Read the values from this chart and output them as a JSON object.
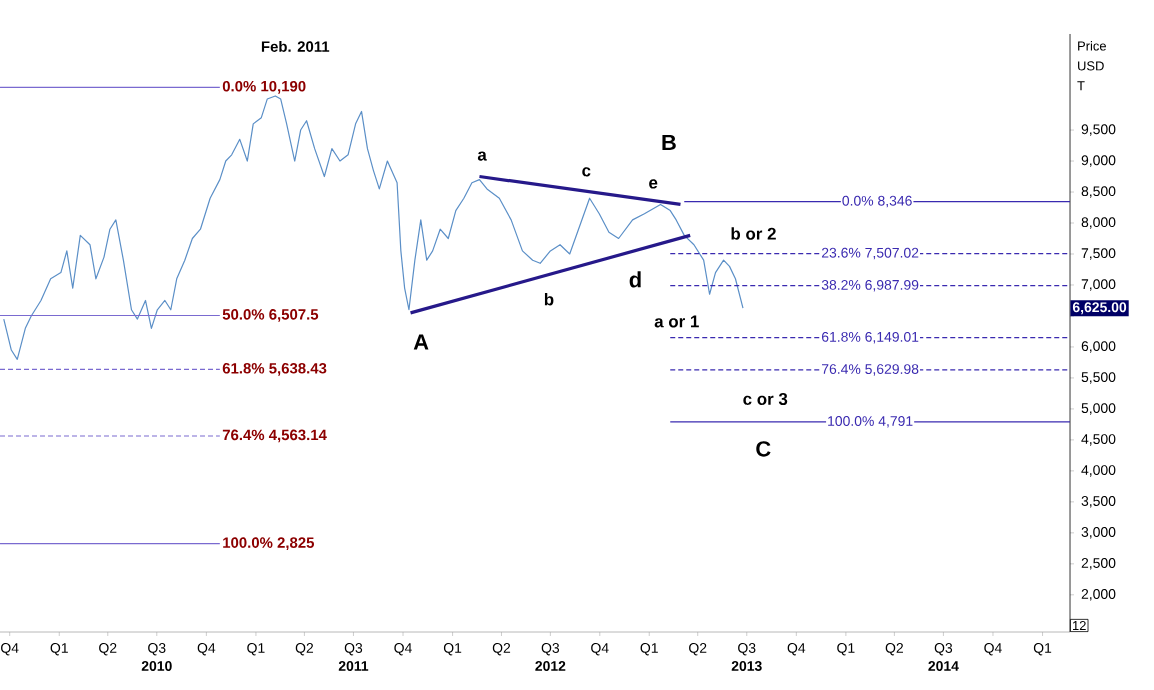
{
  "chart_data": {
    "type": "line",
    "ylabel": "Price USD T",
    "xlim": [
      "2009-09-13",
      "2015-02-21"
    ],
    "ylim": [
      1400,
      11050
    ],
    "grid": false,
    "marker": "none",
    "xticks": [
      {
        "value": "2009-10-01",
        "label": "Q4"
      },
      {
        "value": "2010-01-01",
        "label": "Q1"
      },
      {
        "value": "2010-04-01",
        "label": "Q2"
      },
      {
        "value": "2010-07-01",
        "label": "Q3"
      },
      {
        "value": "2010-10-01",
        "label": "Q4"
      },
      {
        "value": "2011-01-01",
        "label": "Q1"
      },
      {
        "value": "2011-04-01",
        "label": "Q2"
      },
      {
        "value": "2011-07-01",
        "label": "Q3"
      },
      {
        "value": "2011-10-01",
        "label": "Q4"
      },
      {
        "value": "2012-01-01",
        "label": "Q1"
      },
      {
        "value": "2012-04-01",
        "label": "Q2"
      },
      {
        "value": "2012-07-01",
        "label": "Q3"
      },
      {
        "value": "2012-10-01",
        "label": "Q4"
      },
      {
        "value": "2013-01-01",
        "label": "Q1"
      },
      {
        "value": "2013-04-01",
        "label": "Q2"
      },
      {
        "value": "2013-07-01",
        "label": "Q3"
      },
      {
        "value": "2013-10-01",
        "label": "Q4"
      },
      {
        "value": "2014-01-01",
        "label": "Q1"
      },
      {
        "value": "2014-04-01",
        "label": "Q2"
      },
      {
        "value": "2014-07-01",
        "label": "Q3"
      },
      {
        "value": "2014-10-01",
        "label": "Q4"
      },
      {
        "value": "2015-01-01",
        "label": "Q1"
      }
    ],
    "yticks": [
      {
        "value": 2000,
        "label": "2,000"
      },
      {
        "value": 2500,
        "label": "2,500"
      },
      {
        "value": 3000,
        "label": "3,000"
      },
      {
        "value": 3500,
        "label": "3,500"
      },
      {
        "value": 4000,
        "label": "4,000"
      },
      {
        "value": 4500,
        "label": "4,500"
      },
      {
        "value": 5000,
        "label": "5,000"
      },
      {
        "value": 5500,
        "label": "5,500"
      },
      {
        "value": 6000,
        "label": "6,000"
      },
      {
        "value": 6500,
        "label": null
      },
      {
        "value": 7000,
        "label": "7,000"
      },
      {
        "value": 7500,
        "label": "7,500"
      },
      {
        "value": 8000,
        "label": "8,000"
      },
      {
        "value": 8500,
        "label": "8,500"
      },
      {
        "value": 9000,
        "label": "9,000"
      },
      {
        "value": 9500,
        "label": "9,500"
      }
    ],
    "series": [
      {
        "color": "#5b8fc7",
        "line_style": "solid",
        "x": [
          "2009-09-20",
          "2009-10-04",
          "2009-10-15",
          "2009-10-30",
          "2009-11-10",
          "2009-11-28",
          "2009-12-16",
          "2010-01-04",
          "2010-01-15",
          "2010-01-26",
          "2010-02-09",
          "2010-02-27",
          "2010-03-10",
          "2010-03-25",
          "2010-04-05",
          "2010-04-16",
          "2010-04-30",
          "2010-05-15",
          "2010-05-26",
          "2010-06-10",
          "2010-06-21",
          "2010-07-02",
          "2010-07-16",
          "2010-07-27",
          "2010-08-07",
          "2010-08-22",
          "2010-09-05",
          "2010-09-20",
          "2010-10-08",
          "2010-10-26",
          "2010-11-06",
          "2010-11-17",
          "2010-12-02",
          "2010-12-16",
          "2010-12-27",
          "2011-01-11",
          "2011-01-22",
          "2011-02-06",
          "2011-02-16",
          "2011-02-27",
          "2011-03-14",
          "2011-03-25",
          "2011-04-05",
          "2011-04-20",
          "2011-05-08",
          "2011-05-22",
          "2011-06-06",
          "2011-06-21",
          "2011-07-05",
          "2011-07-16",
          "2011-07-27",
          "2011-08-07",
          "2011-08-18",
          "2011-09-02",
          "2011-09-20",
          "2011-09-27",
          "2011-10-04",
          "2011-10-12",
          "2011-10-23",
          "2011-11-03",
          "2011-11-14",
          "2011-11-25",
          "2011-12-09",
          "2011-12-24",
          "2012-01-07",
          "2012-01-22",
          "2012-02-06",
          "2012-02-20",
          "2012-03-05",
          "2012-03-28",
          "2012-04-19",
          "2012-05-10",
          "2012-05-29",
          "2012-06-12",
          "2012-07-01",
          "2012-07-19",
          "2012-08-06",
          "2012-09-12",
          "2012-09-30",
          "2012-10-18",
          "2012-11-05",
          "2012-12-01",
          "2012-12-23",
          "2013-01-22",
          "2013-02-09",
          "2013-02-20",
          "2013-03-07",
          "2013-03-25",
          "2013-04-12",
          "2013-04-23",
          "2013-05-04",
          "2013-05-19",
          "2013-05-30",
          "2013-06-10",
          "2013-06-24"
        ],
        "values": [
          6450,
          5950,
          5800,
          6300,
          6500,
          6750,
          7100,
          7200,
          7550,
          6950,
          7800,
          7650,
          7100,
          7450,
          7900,
          8050,
          7400,
          6600,
          6450,
          6750,
          6300,
          6600,
          6750,
          6600,
          7100,
          7400,
          7750,
          7900,
          8400,
          8700,
          9000,
          9100,
          9350,
          9000,
          9600,
          9700,
          10000,
          10050,
          10000,
          9600,
          9000,
          9500,
          9650,
          9200,
          8750,
          9200,
          9000,
          9100,
          9600,
          9800,
          9200,
          8850,
          8550,
          9000,
          8650,
          7550,
          6950,
          6600,
          7400,
          8050,
          7400,
          7550,
          7900,
          7750,
          8200,
          8400,
          8650,
          8700,
          8550,
          8400,
          8050,
          7550,
          7400,
          7350,
          7550,
          7650,
          7500,
          8400,
          8150,
          7850,
          7750,
          8050,
          8150,
          8300,
          8200,
          8050,
          7800,
          7650,
          7400,
          6850,
          7200,
          7400,
          7300,
          7100,
          6625
        ]
      },
      {
        "color": "#26198a",
        "line_style": "solid",
        "x": [
          "2011-10-15",
          "2013-03-18"
        ],
        "values": [
          6550,
          7800
        ]
      },
      {
        "color": "#26198a",
        "line_style": "solid",
        "x": [
          "2012-02-20",
          "2013-02-28"
        ],
        "values": [
          8750,
          8300
        ]
      },
      {
        "name": "0.0% 10,190",
        "color": "#7a6ad0",
        "line_style": "solid",
        "x": [
          "2009-09-13",
          "2010-10-26"
        ],
        "values": [
          10190,
          10190
        ]
      },
      {
        "name": "50.0% 6,507.5",
        "color": "#7a6ad0",
        "line_style": "solid",
        "x": [
          "2009-09-13",
          "2010-10-26"
        ],
        "values": [
          6507.5,
          6507.5
        ]
      },
      {
        "name": "61.8% 5,638.43",
        "color": "#7a6ad0",
        "line_style": "dashed",
        "x": [
          "2009-09-13",
          "2010-10-26"
        ],
        "values": [
          5638.43,
          5638.43
        ]
      },
      {
        "name": "76.4% 4,563.14",
        "color": "#7a6ad0",
        "line_style": "dashed",
        "x": [
          "2009-09-13",
          "2010-10-26"
        ],
        "values": [
          4563.14,
          4563.14
        ]
      },
      {
        "name": "100.0% 2,825",
        "color": "#7a6ad0",
        "line_style": "solid",
        "x": [
          "2009-09-13",
          "2010-10-26"
        ],
        "values": [
          2825,
          2825
        ]
      },
      {
        "name": "0.0% 8,346",
        "color": "#3a2ab0",
        "line_style": "solid",
        "x": [
          "2013-03-07",
          "2015-02-21"
        ],
        "values": [
          8346,
          8346
        ]
      },
      {
        "name": "23.6% 7,507.02",
        "color": "#3a2ab0",
        "line_style": "dashed",
        "x": [
          "2013-02-09",
          "2015-02-21"
        ],
        "values": [
          7507.02,
          7507.02
        ]
      },
      {
        "name": "38.2% 6,987.99",
        "color": "#3a2ab0",
        "line_style": "dashed",
        "x": [
          "2013-02-09",
          "2015-02-21"
        ],
        "values": [
          6987.99,
          6987.99
        ]
      },
      {
        "name": "61.8% 6,149.01",
        "color": "#3a2ab0",
        "line_style": "dashed",
        "x": [
          "2013-02-09",
          "2015-02-21"
        ],
        "values": [
          6149.01,
          6149.01
        ]
      },
      {
        "name": "76.4% 5,629.98",
        "color": "#3a2ab0",
        "line_style": "dashed",
        "x": [
          "2013-02-09",
          "2015-02-21"
        ],
        "values": [
          5629.98,
          5629.98
        ]
      },
      {
        "name": "100.0% 4,791",
        "color": "#3a2ab0",
        "line_style": "solid",
        "x": [
          "2013-02-09",
          "2015-02-21"
        ],
        "values": [
          4791,
          4791
        ]
      }
    ],
    "annotations": [
      "Feb. 2011",
      "A",
      "a",
      "b",
      "c",
      "d",
      "e",
      "B",
      "b or 2",
      "a or 1",
      "c or 3",
      "C",
      "6,625.00",
      "2010",
      "2011",
      "2012",
      "2013",
      "2014",
      "12"
    ]
  }
}
